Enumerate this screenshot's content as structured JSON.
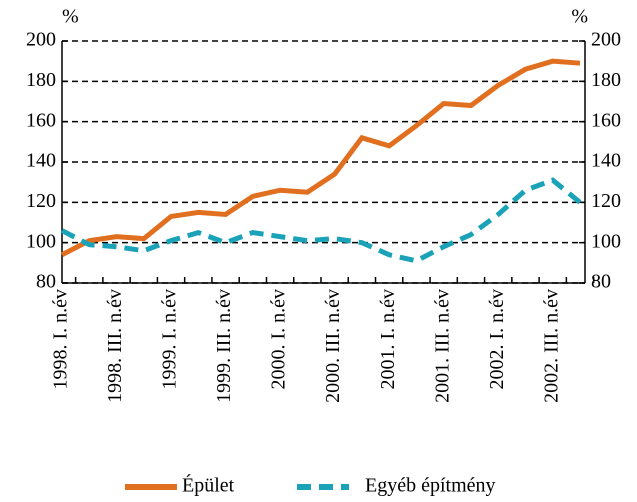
{
  "chart_data": {
    "type": "line",
    "y_label": "%",
    "y2_label": "%",
    "categories": [
      "1998. I. n.év",
      null,
      "1998. III. n.év",
      null,
      "1999. I. n.év",
      null,
      "1999. III. n.év",
      null,
      "2000. I. n.év",
      null,
      "2000. III. n.év",
      null,
      "2001. I. n.év",
      null,
      "2001. III. n.év",
      null,
      "2002. I. n.év",
      null,
      "2002. III. n.év",
      null
    ],
    "series": [
      {
        "name": "Épület",
        "color": "#e07020",
        "dash": false,
        "values": [
          94,
          101,
          103,
          102,
          113,
          115,
          114,
          123,
          126,
          125,
          134,
          152,
          148,
          158,
          169,
          168,
          178,
          186,
          190,
          189
        ]
      },
      {
        "name": "Egyéb építmény",
        "color": "#1aa3b8",
        "dash": true,
        "values": [
          106,
          99,
          98,
          96,
          101,
          105,
          100,
          105,
          103,
          101,
          102,
          100,
          94,
          91,
          98,
          104,
          114,
          126,
          131,
          120
        ]
      }
    ],
    "ylim": [
      80,
      200
    ],
    "yticks": [
      80,
      100,
      120,
      140,
      160,
      180,
      200
    ],
    "y2lim": [
      80,
      200
    ],
    "y2ticks": [
      80,
      100,
      120,
      140,
      160,
      180,
      200
    ],
    "grid": true,
    "legend": "bottom"
  }
}
